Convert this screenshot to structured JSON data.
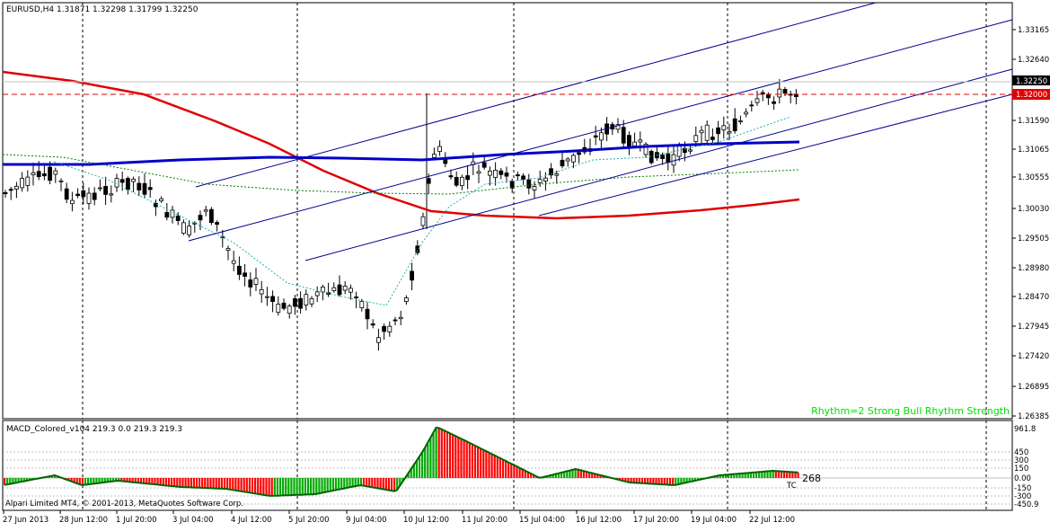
{
  "symbol_header": "EURUSD,H4  1.31871 1.32298 1.31799 1.32250",
  "price_axis": [
    "1.33165",
    "1.32640",
    "1.32250",
    "1.32000",
    "1.31590",
    "1.31065",
    "1.30555",
    "1.30030",
    "1.29505",
    "1.28980",
    "1.28470",
    "1.27945",
    "1.27420",
    "1.26895",
    "1.26385"
  ],
  "price_tag_current": "1.32250",
  "price_tag_line": "1.32000",
  "rhythm_text": "Rhythm=2 Strong Bull Rhythm Strength",
  "indicator": {
    "header": "MACD_Colored_v104 219.3 0.0 219.3 219.3",
    "axis": [
      "961.8",
      "450",
      "300",
      "150",
      "0.00",
      "-150",
      "-300",
      "-450.9"
    ],
    "tag": "TC",
    "value_label": "268"
  },
  "copyright": "Alpari Limited MT4, © 2001-2013, MetaQuotes Software Corp.",
  "time_axis": [
    "27 Jun 2013",
    "28 Jun 12:00",
    "1 Jul 20:00",
    "3 Jul 04:00",
    "4 Jul 12:00",
    "5 Jul 20:00",
    "9 Jul 04:00",
    "10 Jul 12:00",
    "11 Jul 20:00",
    "15 Jul 04:00",
    "16 Jul 12:00",
    "17 Jul 20:00",
    "19 Jul 04:00",
    "22 Jul 12:00"
  ],
  "colors": {
    "bull_histogram": "#00aa00",
    "bear_histogram": "#ff0000",
    "ma_slow": "#e00000",
    "ma_mid": "#0000c8",
    "channel": "#000090",
    "hline": "#e00000",
    "rhythm": "#00e000"
  }
}
